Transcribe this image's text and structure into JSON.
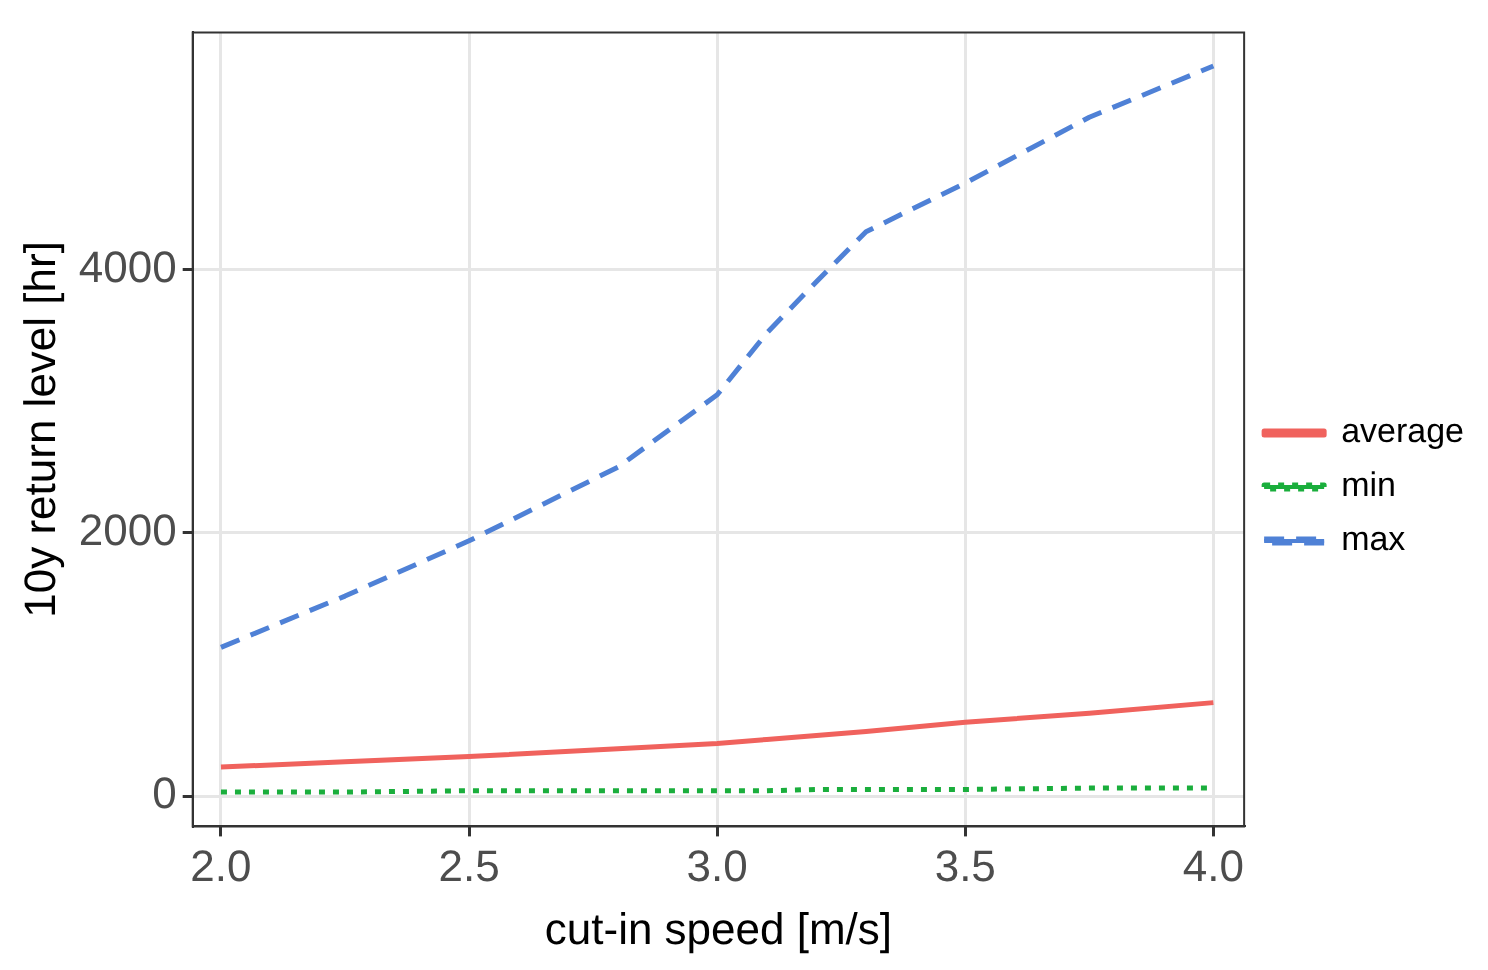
{
  "chart_data": {
    "type": "line",
    "xlabel": "cut-in speed [m/s]",
    "ylabel": "10y return level [hr]",
    "x": [
      2.0,
      2.25,
      2.5,
      2.8,
      3.0,
      3.1,
      3.2,
      3.3,
      3.5,
      3.75,
      4.0
    ],
    "series": [
      {
        "name": "average",
        "color": "#f0625d",
        "line_style": "solid",
        "values": [
          220,
          260,
          300,
          360,
          400,
          430,
          460,
          490,
          560,
          630,
          710
        ]
      },
      {
        "name": "min",
        "color": "#1aae3c",
        "line_style": "dotted",
        "values": [
          30,
          30,
          40,
          40,
          40,
          40,
          50,
          50,
          50,
          60,
          60
        ]
      },
      {
        "name": "max",
        "color": "#4f81d6",
        "line_style": "dashed",
        "values": [
          1130,
          1520,
          1940,
          2500,
          3050,
          3520,
          3910,
          4290,
          4660,
          5160,
          5550
        ]
      }
    ],
    "xlim": [
      1.943,
      4.062
    ],
    "xticks": [
      {
        "value": 2.0,
        "label": "2.0"
      },
      {
        "value": 2.5,
        "label": "2.5"
      },
      {
        "value": 3.0,
        "label": "3.0"
      },
      {
        "value": 3.5,
        "label": "3.5"
      },
      {
        "value": 4.0,
        "label": "4.0"
      }
    ],
    "ylim": [
      -231,
      5805
    ],
    "yticks": [
      0,
      2000,
      4000
    ],
    "grid": true,
    "legend": "right",
    "marker": "none"
  }
}
